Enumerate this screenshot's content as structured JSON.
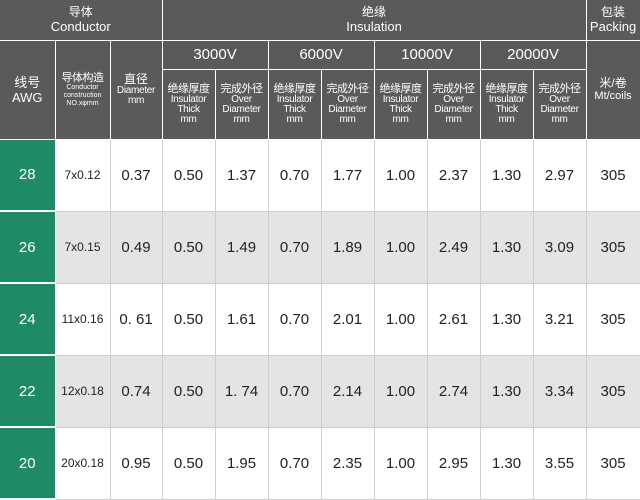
{
  "header": {
    "conductor": {
      "cn": "导体",
      "en": "Conductor"
    },
    "insulation": {
      "cn": "绝缘",
      "en": "Insulation"
    },
    "packing": {
      "cn": "包装",
      "en": "Packing"
    },
    "awg": {
      "cn": "线号",
      "en": "AWG"
    },
    "construction": {
      "cn": "导体构造",
      "en1": "Conductor",
      "en2": "construction",
      "en3": "NO.xφmm"
    },
    "diameter": {
      "cn": "直径",
      "en1": "Diameter",
      "en2": "mm"
    },
    "voltages": [
      "3000V",
      "6000V",
      "10000V",
      "20000V"
    ],
    "thick": {
      "cn": "绝缘厚度",
      "en1": "Insulator",
      "en2": "Thick",
      "en3": "mm"
    },
    "over": {
      "cn": "完成外径",
      "en1": "Over",
      "en2": "Diameter",
      "en3": "mm"
    },
    "coils": {
      "cn": "米/卷",
      "en": "Mt/coils"
    }
  },
  "rows": [
    {
      "awg": "28",
      "construction": "7x0.12",
      "diameter": "0.37",
      "v3000_thick": "0.50",
      "v3000_od": "1.37",
      "v6000_thick": "0.70",
      "v6000_od": "1.77",
      "v10000_thick": "1.00",
      "v10000_od": "2.37",
      "v20000_thick": "1.30",
      "v20000_od": "2.97",
      "packing": "305"
    },
    {
      "awg": "26",
      "construction": "7x0.15",
      "diameter": "0.49",
      "v3000_thick": "0.50",
      "v3000_od": "1.49",
      "v6000_thick": "0.70",
      "v6000_od": "1.89",
      "v10000_thick": "1.00",
      "v10000_od": "2.49",
      "v20000_thick": "1.30",
      "v20000_od": "3.09",
      "packing": "305"
    },
    {
      "awg": "24",
      "construction": "11x0.16",
      "diameter": "0. 61",
      "v3000_thick": "0.50",
      "v3000_od": "1.61",
      "v6000_thick": "0.70",
      "v6000_od": "2.01",
      "v10000_thick": "1.00",
      "v10000_od": "2.61",
      "v20000_thick": "1.30",
      "v20000_od": "3.21",
      "packing": "305"
    },
    {
      "awg": "22",
      "construction": "12x0.18",
      "diameter": "0.74",
      "v3000_thick": "0.50",
      "v3000_od": "1. 74",
      "v6000_thick": "0.70",
      "v6000_od": "2.14",
      "v10000_thick": "1.00",
      "v10000_od": "2.74",
      "v20000_thick": "1.30",
      "v20000_od": "3.34",
      "packing": "305"
    },
    {
      "awg": "20",
      "construction": "20x0.18",
      "diameter": "0.95",
      "v3000_thick": "0.50",
      "v3000_od": "1.95",
      "v6000_thick": "0.70",
      "v6000_od": "2.35",
      "v10000_thick": "1.00",
      "v10000_od": "2.95",
      "v20000_thick": "1.30",
      "v20000_od": "3.55",
      "packing": "305"
    }
  ]
}
